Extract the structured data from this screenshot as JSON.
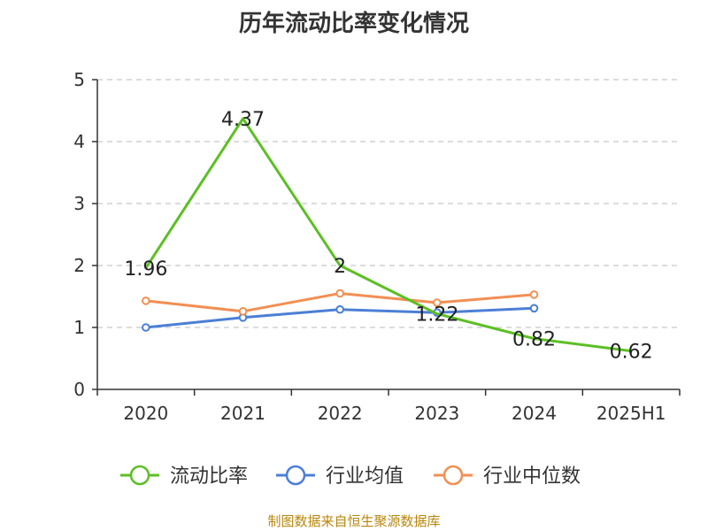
{
  "title": "历年流动比率变化情况",
  "footer": "制图数据来自恒生聚源数据库",
  "chart_data": {
    "type": "line",
    "title": "历年流动比率变化情况",
    "categories": [
      "2020",
      "2021",
      "2022",
      "2023",
      "2024",
      "2025H1"
    ],
    "ylim": [
      0,
      5
    ],
    "yticks": [
      "0",
      "1",
      "2",
      "3",
      "4",
      "5"
    ],
    "grid": true,
    "legend_position": "bottom",
    "series": [
      {
        "name": "流动比率",
        "color": "#5cbf24",
        "values": [
          1.96,
          4.37,
          2,
          1.22,
          0.82,
          0.62
        ],
        "labels": [
          "1.96",
          "4.37",
          "2",
          "1.22",
          "0.82",
          "0.62"
        ]
      },
      {
        "name": "行业均值",
        "color": "#4c7fd6",
        "values": [
          1.0,
          1.16,
          1.29,
          1.24,
          1.31,
          null
        ]
      },
      {
        "name": "行业中位数",
        "color": "#f28f52",
        "values": [
          1.43,
          1.26,
          1.55,
          1.4,
          1.53,
          null
        ]
      }
    ]
  }
}
